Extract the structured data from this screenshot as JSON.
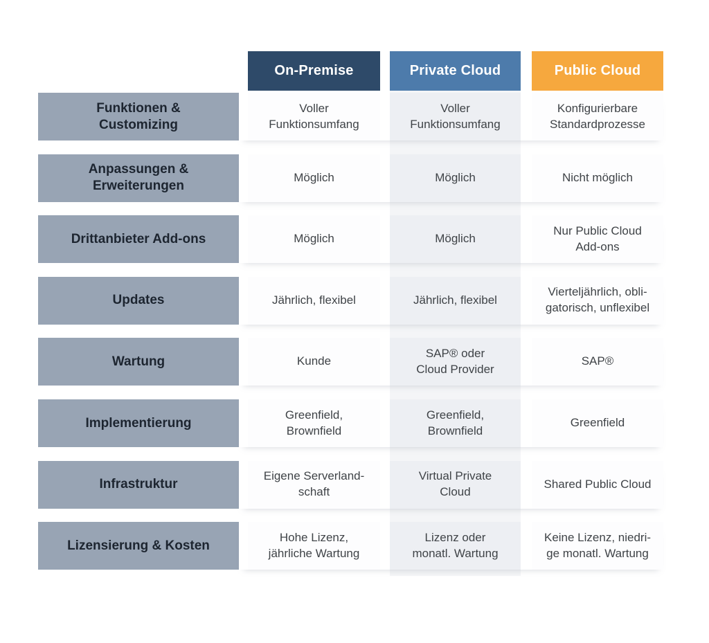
{
  "colors": {
    "row_header_bg": "#98a4b4",
    "row_header_text": "#1d2530",
    "cell_text": "#3f4347",
    "header_text": "#ffffff",
    "private_column_bg": "#edeff3",
    "private_column_backdrop": "#f4f5f7"
  },
  "chart_data": {
    "type": "table",
    "title": "",
    "legend_position": "none",
    "columns": [
      {
        "id": "on_premise",
        "label": "On-Premise",
        "color": "#2e4a69"
      },
      {
        "id": "private_cloud",
        "label": "Private Cloud",
        "color": "#4d7bab"
      },
      {
        "id": "public_cloud",
        "label": "Public Cloud",
        "color": "#f6a83e"
      }
    ],
    "rows": [
      {
        "label": "Funktionen &\nCustomizing",
        "cells": [
          "Voller\nFunktionsumfang",
          "Voller\nFunktionsumfang",
          "Konfigurierbare\nStandardprozesse"
        ]
      },
      {
        "label": "Anpassungen &\nErweiterungen",
        "cells": [
          "Möglich",
          "Möglich",
          "Nicht möglich"
        ]
      },
      {
        "label": "Drittanbieter Add-ons",
        "cells": [
          "Möglich",
          "Möglich",
          "Nur Public Cloud\nAdd-ons"
        ]
      },
      {
        "label": "Updates",
        "cells": [
          "Jährlich, flexibel",
          "Jährlich, flexibel",
          "Vierteljährlich, obli-\ngatorisch, unflexibel"
        ]
      },
      {
        "label": "Wartung",
        "cells": [
          "Kunde",
          "SAP® oder\nCloud Provider",
          "SAP®"
        ]
      },
      {
        "label": "Implementierung",
        "cells": [
          "Greenfield,\nBrownfield",
          "Greenfield,\nBrownfield",
          "Greenfield"
        ]
      },
      {
        "label": "Infrastruktur",
        "cells": [
          "Eigene Serverland-\nschaft",
          "Virtual Private\nCloud",
          "Shared Public Cloud"
        ]
      },
      {
        "label": "Lizensierung & Kosten",
        "cells": [
          "Hohe Lizenz,\njährliche Wartung",
          "Lizenz oder\nmonatl. Wartung",
          "Keine Lizenz, niedri-\nge monatl. Wartung"
        ]
      }
    ]
  }
}
